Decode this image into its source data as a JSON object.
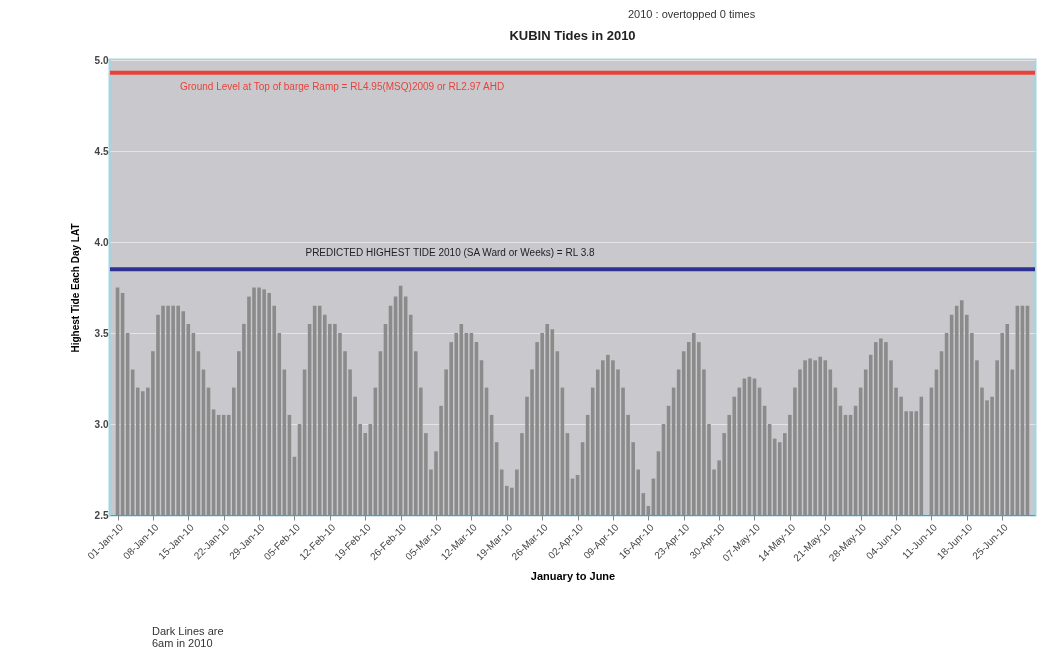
{
  "chart_data": {
    "type": "bar",
    "title": "KUBIN Tides in 2010",
    "xlabel": "January to June",
    "ylabel": "Highest Tide Each Day LAT",
    "annotations": [
      "2010 : overtopped 0 times",
      "Dark Lines are 6am in 2010"
    ],
    "color": "#8c8b8b",
    "grid": "y",
    "ylim": [
      2.5,
      5.0
    ],
    "yticks": [
      {
        "value": 2.5,
        "label": "2.5"
      },
      {
        "value": 3.0,
        "label": "3.0"
      },
      {
        "value": 3.5,
        "label": "3.5"
      },
      {
        "value": 4.0,
        "label": "4.0"
      },
      {
        "value": 4.5,
        "label": "4.5"
      },
      {
        "value": 5.0,
        "label": "5.0"
      }
    ],
    "xlim": [
      "2009-12-31T12:00",
      "2010-06-30T12:00"
    ],
    "xticks": [
      {
        "value": "2010-01-01",
        "label": "01-Jan-10"
      },
      {
        "value": "2010-01-08",
        "label": "08-Jan-10"
      },
      {
        "value": "2010-01-15",
        "label": "15-Jan-10"
      },
      {
        "value": "2010-01-22",
        "label": "22-Jan-10"
      },
      {
        "value": "2010-01-29",
        "label": "29-Jan-10"
      },
      {
        "value": "2010-02-05",
        "label": "05-Feb-10"
      },
      {
        "value": "2010-02-12",
        "label": "12-Feb-10"
      },
      {
        "value": "2010-02-19",
        "label": "19-Feb-10"
      },
      {
        "value": "2010-02-26",
        "label": "26-Feb-10"
      },
      {
        "value": "2010-03-05",
        "label": "05-Mar-10"
      },
      {
        "value": "2010-03-12",
        "label": "12-Mar-10"
      },
      {
        "value": "2010-03-19",
        "label": "19-Mar-10"
      },
      {
        "value": "2010-03-26",
        "label": "26-Mar-10"
      },
      {
        "value": "2010-04-02",
        "label": "02-Apr-10"
      },
      {
        "value": "2010-04-09",
        "label": "09-Apr-10"
      },
      {
        "value": "2010-04-16",
        "label": "16-Apr-10"
      },
      {
        "value": "2010-04-23",
        "label": "23-Apr-10"
      },
      {
        "value": "2010-04-30",
        "label": "30-Apr-10"
      },
      {
        "value": "2010-05-07",
        "label": "07-May-10"
      },
      {
        "value": "2010-05-14",
        "label": "14-May-10"
      },
      {
        "value": "2010-05-21",
        "label": "21-May-10"
      },
      {
        "value": "2010-05-28",
        "label": "28-May-10"
      },
      {
        "value": "2010-06-04",
        "label": "04-Jun-10"
      },
      {
        "value": "2010-06-11",
        "label": "11-Jun-10"
      },
      {
        "value": "2010-06-18",
        "label": "18-Jun-10"
      },
      {
        "value": "2010-06-25",
        "label": "25-Jun-10"
      }
    ],
    "ref_lines": [
      {
        "axis": "y",
        "value": 4.93,
        "label": "Ground Level at Top of barge Ramp = RL4.95(MSQ)2009 or RL2.97 AHD",
        "color": "#e8423a"
      },
      {
        "axis": "y",
        "value": 3.85,
        "label": "PREDICTED HIGHEST TIDE 2010 (SA Ward or Weeks) = RL 3.8",
        "color": "#2e3192"
      }
    ],
    "x": [
      "2010-01-01",
      "2010-01-02",
      "2010-01-03",
      "2010-01-04",
      "2010-01-05",
      "2010-01-06",
      "2010-01-07",
      "2010-01-08",
      "2010-01-09",
      "2010-01-10",
      "2010-01-11",
      "2010-01-12",
      "2010-01-13",
      "2010-01-14",
      "2010-01-15",
      "2010-01-16",
      "2010-01-17",
      "2010-01-18",
      "2010-01-19",
      "2010-01-20",
      "2010-01-21",
      "2010-01-22",
      "2010-01-23",
      "2010-01-24",
      "2010-01-25",
      "2010-01-26",
      "2010-01-27",
      "2010-01-28",
      "2010-01-29",
      "2010-01-30",
      "2010-01-31",
      "2010-02-01",
      "2010-02-02",
      "2010-02-03",
      "2010-02-04",
      "2010-02-05",
      "2010-02-06",
      "2010-02-07",
      "2010-02-08",
      "2010-02-09",
      "2010-02-10",
      "2010-02-11",
      "2010-02-12",
      "2010-02-13",
      "2010-02-14",
      "2010-02-15",
      "2010-02-16",
      "2010-02-17",
      "2010-02-18",
      "2010-02-19",
      "2010-02-20",
      "2010-02-21",
      "2010-02-22",
      "2010-02-23",
      "2010-02-24",
      "2010-02-25",
      "2010-02-26",
      "2010-02-27",
      "2010-02-28",
      "2010-03-01",
      "2010-03-02",
      "2010-03-03",
      "2010-03-04",
      "2010-03-05",
      "2010-03-06",
      "2010-03-07",
      "2010-03-08",
      "2010-03-09",
      "2010-03-10",
      "2010-03-11",
      "2010-03-12",
      "2010-03-13",
      "2010-03-14",
      "2010-03-15",
      "2010-03-16",
      "2010-03-17",
      "2010-03-18",
      "2010-03-19",
      "2010-03-20",
      "2010-03-21",
      "2010-03-22",
      "2010-03-23",
      "2010-03-24",
      "2010-03-25",
      "2010-03-26",
      "2010-03-27",
      "2010-03-28",
      "2010-03-29",
      "2010-03-30",
      "2010-03-31",
      "2010-04-01",
      "2010-04-02",
      "2010-04-03",
      "2010-04-04",
      "2010-04-05",
      "2010-04-06",
      "2010-04-07",
      "2010-04-08",
      "2010-04-09",
      "2010-04-10",
      "2010-04-11",
      "2010-04-12",
      "2010-04-13",
      "2010-04-14",
      "2010-04-15",
      "2010-04-16",
      "2010-04-17",
      "2010-04-18",
      "2010-04-19",
      "2010-04-20",
      "2010-04-21",
      "2010-04-22",
      "2010-04-23",
      "2010-04-24",
      "2010-04-25",
      "2010-04-26",
      "2010-04-27",
      "2010-04-28",
      "2010-04-29",
      "2010-04-30",
      "2010-05-01",
      "2010-05-02",
      "2010-05-03",
      "2010-05-04",
      "2010-05-05",
      "2010-05-06",
      "2010-05-07",
      "2010-05-08",
      "2010-05-09",
      "2010-05-10",
      "2010-05-11",
      "2010-05-12",
      "2010-05-13",
      "2010-05-14",
      "2010-05-15",
      "2010-05-16",
      "2010-05-17",
      "2010-05-18",
      "2010-05-19",
      "2010-05-20",
      "2010-05-21",
      "2010-05-22",
      "2010-05-23",
      "2010-05-24",
      "2010-05-25",
      "2010-05-26",
      "2010-05-27",
      "2010-05-28",
      "2010-05-29",
      "2010-05-30",
      "2010-05-31",
      "2010-06-01",
      "2010-06-02",
      "2010-06-03",
      "2010-06-04",
      "2010-06-05",
      "2010-06-06",
      "2010-06-07",
      "2010-06-08",
      "2010-06-09",
      "2010-06-10",
      "2010-06-11",
      "2010-06-12",
      "2010-06-13",
      "2010-06-14",
      "2010-06-15",
      "2010-06-16",
      "2010-06-17",
      "2010-06-18",
      "2010-06-19",
      "2010-06-20",
      "2010-06-21",
      "2010-06-22",
      "2010-06-23",
      "2010-06-24",
      "2010-06-25",
      "2010-06-26",
      "2010-06-27",
      "2010-06-28",
      "2010-06-29",
      "2010-06-30"
    ],
    "values": [
      3.75,
      3.72,
      3.5,
      3.3,
      3.2,
      3.18,
      3.2,
      3.4,
      3.6,
      3.65,
      3.65,
      3.65,
      3.65,
      3.62,
      3.55,
      3.5,
      3.4,
      3.3,
      3.2,
      3.08,
      3.05,
      3.05,
      3.05,
      3.2,
      3.4,
      3.55,
      3.7,
      3.75,
      3.75,
      3.74,
      3.72,
      3.65,
      3.5,
      3.3,
      3.05,
      2.82,
      3.0,
      3.3,
      3.55,
      3.65,
      3.65,
      3.6,
      3.55,
      3.55,
      3.5,
      3.4,
      3.3,
      3.15,
      3.0,
      2.95,
      3.0,
      3.2,
      3.4,
      3.55,
      3.65,
      3.7,
      3.76,
      3.7,
      3.6,
      3.4,
      3.2,
      2.95,
      2.75,
      2.85,
      3.1,
      3.3,
      3.45,
      3.5,
      3.55,
      3.5,
      3.5,
      3.45,
      3.35,
      3.2,
      3.05,
      2.9,
      2.75,
      2.66,
      2.65,
      2.75,
      2.95,
      3.15,
      3.3,
      3.45,
      3.5,
      3.55,
      3.52,
      3.4,
      3.2,
      2.95,
      2.7,
      2.72,
      2.9,
      3.05,
      3.2,
      3.3,
      3.35,
      3.38,
      3.35,
      3.3,
      3.2,
      3.05,
      2.9,
      2.75,
      2.62,
      2.55,
      2.7,
      2.85,
      3.0,
      3.1,
      3.2,
      3.3,
      3.4,
      3.45,
      3.5,
      3.45,
      3.3,
      3.0,
      2.75,
      2.8,
      2.95,
      3.05,
      3.15,
      3.2,
      3.25,
      3.26,
      3.25,
      3.2,
      3.1,
      3.0,
      2.92,
      2.9,
      2.95,
      3.05,
      3.2,
      3.3,
      3.35,
      3.36,
      3.35,
      3.37,
      3.35,
      3.3,
      3.2,
      3.1,
      3.05,
      3.05,
      3.1,
      3.2,
      3.3,
      3.38,
      3.45,
      3.47,
      3.45,
      3.35,
      3.2,
      3.15,
      3.07,
      3.07,
      3.07,
      3.15,
      null,
      3.2,
      3.3,
      3.4,
      3.5,
      3.6,
      3.65,
      3.68,
      3.6,
      3.5,
      3.35,
      3.2,
      3.13,
      3.15,
      3.35,
      3.5,
      3.55,
      3.3,
      3.65,
      3.65,
      3.65
    ]
  }
}
